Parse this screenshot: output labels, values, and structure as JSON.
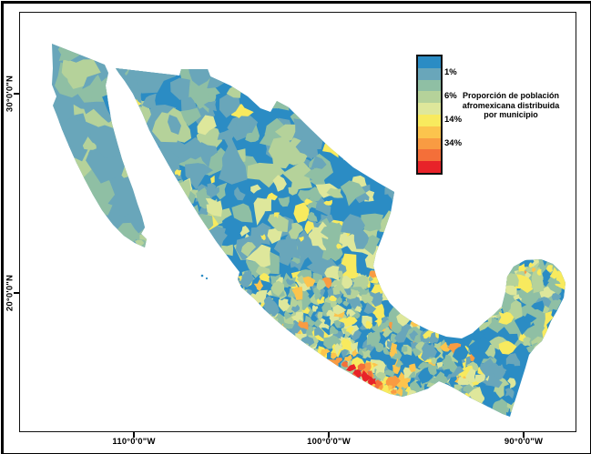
{
  "figure": {
    "background": "#ffffff",
    "border_color": "#000000"
  },
  "map": {
    "type": "choropleth-by-municipality",
    "base_color": "#2b8cc4",
    "sea_color": "#ffffff"
  },
  "legend": {
    "title": "Proporción de población afromexicana distribuida por municipio",
    "labels": [
      "1%",
      "6%",
      "14%",
      "34%"
    ],
    "colors": [
      "#2b8cc4",
      "#69a6ba",
      "#8fbfa4",
      "#b5d29a",
      "#dee79b",
      "#f8ea5e",
      "#fcc44d",
      "#f99b42",
      "#f46f39",
      "#e82329"
    ]
  },
  "axes": {
    "x_ticks": [
      "110°0'0\"W",
      "100°0'0\"W",
      "90°0'0\"W"
    ],
    "y_ticks": [
      "30°0'0\"N",
      "20°0'0\"N"
    ]
  }
}
